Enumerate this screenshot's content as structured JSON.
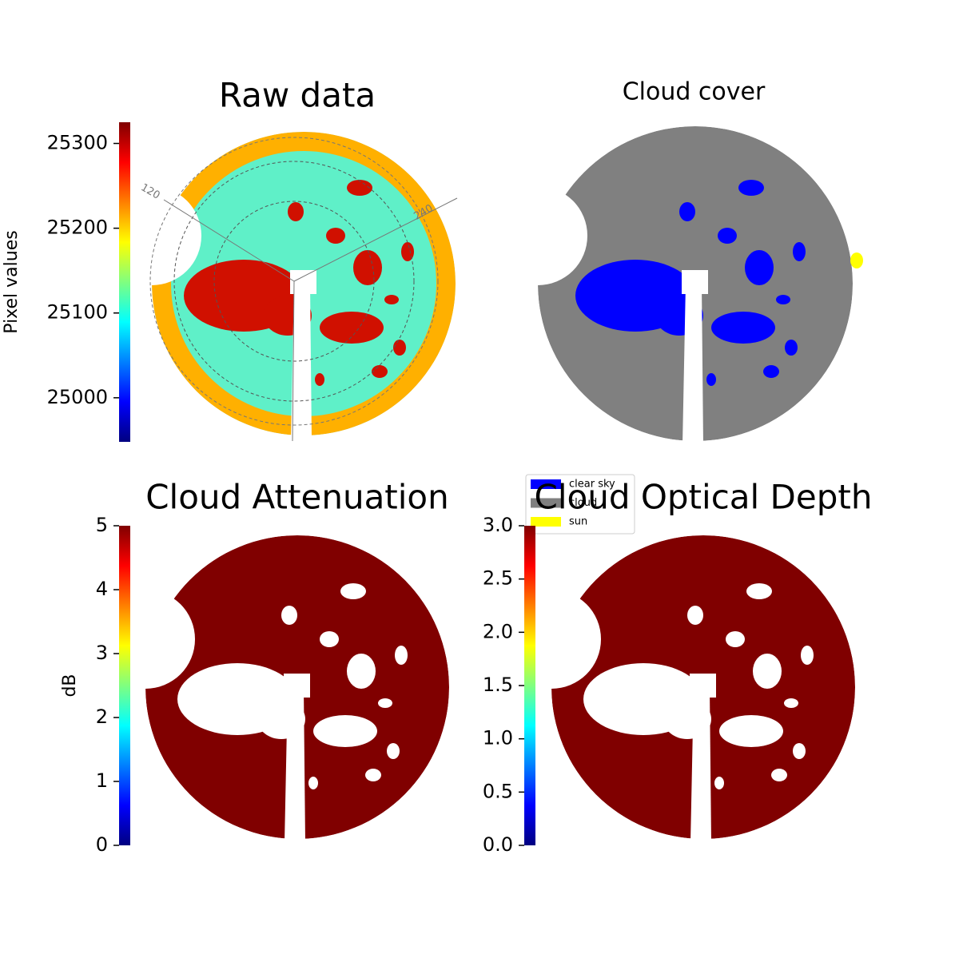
{
  "chart_data": [
    {
      "type": "image",
      "title": "Raw data",
      "colormap": "jet",
      "color": "#5ff0c8",
      "blob_color": "#d01000",
      "ylabel": "Pixel values",
      "ylim": [
        24948,
        25325
      ],
      "yticks": [
        25000,
        25100,
        25200,
        25300
      ],
      "polar_labels": [
        "120",
        "240"
      ]
    },
    {
      "type": "categorical-image",
      "title": "Cloud cover",
      "color": "#808080",
      "blob_color": "#0000ff",
      "legend": [
        {
          "name": "clear sky",
          "color": "#0000ff"
        },
        {
          "name": "cloud",
          "color": "#808080"
        },
        {
          "name": "sun",
          "color": "#ffff00"
        }
      ]
    },
    {
      "type": "image",
      "title": "Cloud Attenuation",
      "colormap": "jet",
      "color": "#800000",
      "blob_color": "#ffffff",
      "ylabel": "dB",
      "ylim": [
        0,
        5
      ],
      "yticks": [
        0,
        1,
        2,
        3,
        4,
        5
      ]
    },
    {
      "type": "image",
      "title": "Cloud Optical Depth",
      "colormap": "jet",
      "color": "#800000",
      "blob_color": "#ffffff",
      "ylim": [
        0,
        3
      ],
      "yticks": [
        {
          "value": 0,
          "label": "0.0"
        },
        {
          "value": 0.5,
          "label": "0.5"
        },
        {
          "value": 1,
          "label": "1.0"
        },
        {
          "value": 1.5,
          "label": "1.5"
        },
        {
          "value": 2,
          "label": "2.0"
        },
        {
          "value": 2.5,
          "label": "2.5"
        },
        {
          "value": 3,
          "label": "3.0"
        }
      ]
    }
  ]
}
